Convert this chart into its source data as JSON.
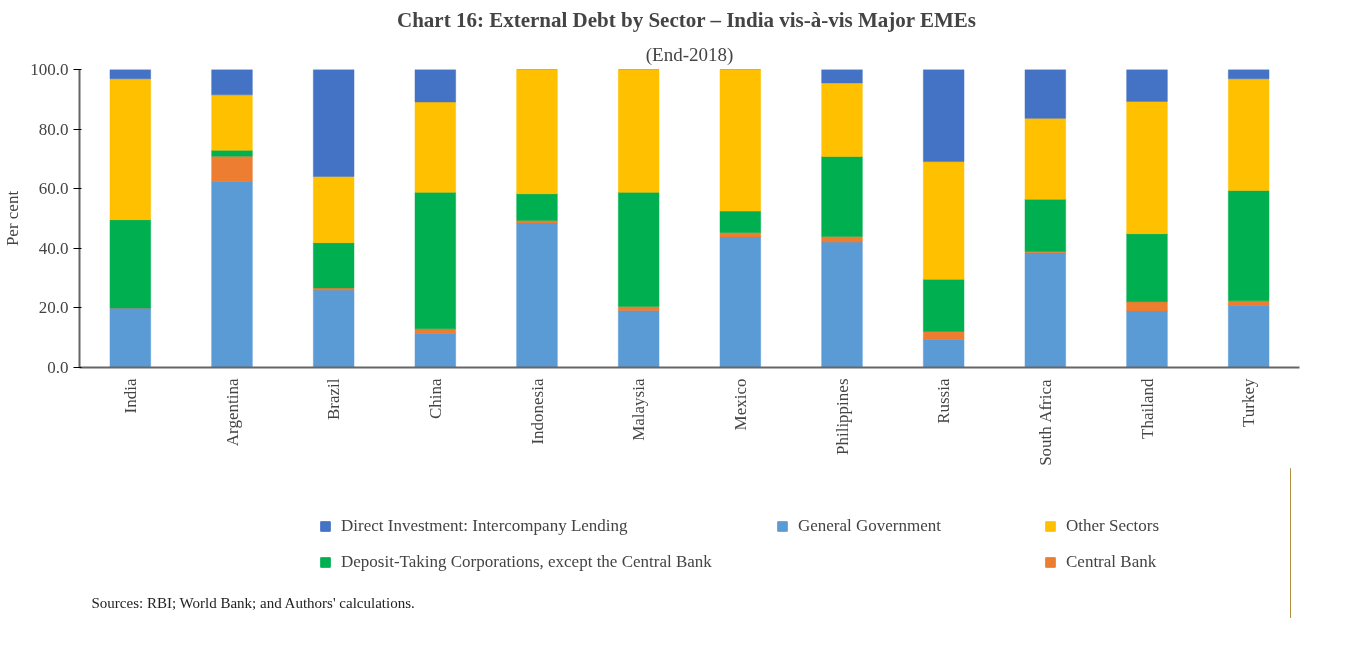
{
  "chart_data": {
    "type": "bar",
    "stacked": true,
    "title": "Chart 16: External Debt by Sector –  India vis-à-vis Major EMEs",
    "subtitle": "(End-2018)",
    "ylabel": "Per cent",
    "categories": [
      "India",
      "Argentina",
      "Brazil",
      "China",
      "Indonesia",
      "Malaysia",
      "Mexico",
      "Philippines",
      "Russia",
      "South Africa",
      "Thailand",
      "Turkey"
    ],
    "series": [
      {
        "name": "General Government",
        "color": "#5b9bd5",
        "values": [
          20.0,
          62.4,
          26.0,
          11.5,
          48.5,
          19.1,
          43.8,
          42.1,
          9.4,
          38.5,
          19.0,
          20.9
        ]
      },
      {
        "name": "Central Bank",
        "color": "#ed7d31",
        "values": [
          0,
          8.5,
          0.7,
          1.5,
          0.8,
          1.4,
          1.5,
          1.9,
          2.7,
          0.4,
          3.1,
          1.5
        ]
      },
      {
        "name": "Deposit-Taking Corporations, except the Central Bank",
        "color": "#00b050",
        "values": [
          29.6,
          2.0,
          15.2,
          45.8,
          9.0,
          38.3,
          7.2,
          26.8,
          17.5,
          17.6,
          22.8,
          37.0
        ]
      },
      {
        "name": "Other Sectors",
        "color": "#ffc000",
        "values": [
          47.3,
          18.6,
          22.2,
          30.3,
          41.7,
          41.2,
          47.5,
          24.7,
          39.5,
          27.1,
          44.4,
          37.5
        ]
      },
      {
        "name": "Direct Investment: Intercompany Lending",
        "color": "#4472c4",
        "values": [
          3.1,
          8.5,
          35.9,
          10.9,
          0,
          0,
          0,
          4.5,
          30.9,
          16.4,
          10.7,
          3.1
        ]
      }
    ],
    "ylim": [
      0,
      100
    ],
    "yticks": [
      {
        "value": 0,
        "label": "0.0"
      },
      {
        "value": 20,
        "label": "20.0"
      },
      {
        "value": 40,
        "label": "40.0"
      },
      {
        "value": 60,
        "label": "60.0"
      },
      {
        "value": 80,
        "label": "80.0"
      },
      {
        "value": 100,
        "label": "100.0"
      }
    ],
    "legend": "bottom",
    "annotations": [
      "Sources: RBI; World Bank; and Authors' calculations."
    ]
  }
}
